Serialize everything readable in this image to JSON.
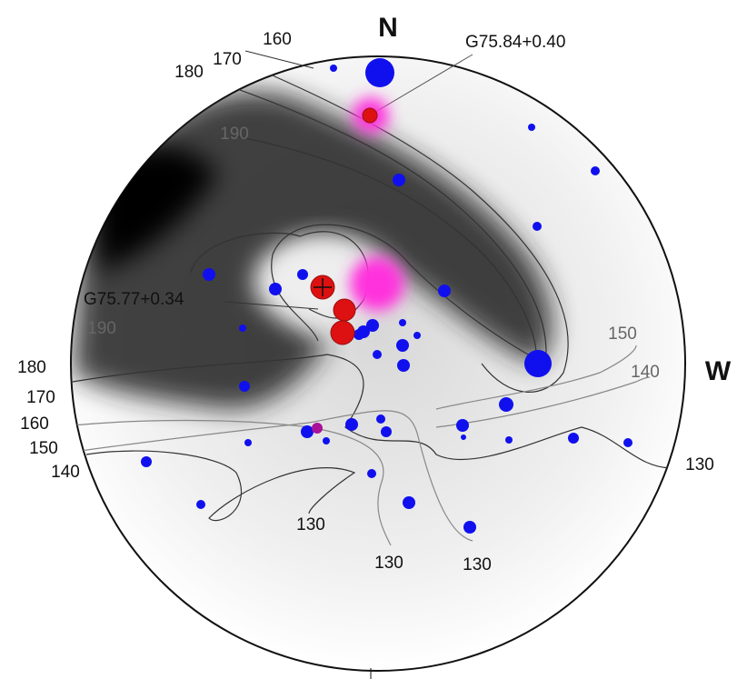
{
  "compass": {
    "north": "N",
    "west": "W"
  },
  "sources": [
    {
      "label": "G75.84+0.40"
    },
    {
      "label": "G75.77+0.34"
    }
  ],
  "contour_labels": [
    "160",
    "170",
    "180",
    "190",
    "190",
    "180",
    "170",
    "160",
    "150",
    "140",
    "150",
    "140",
    "130",
    "130",
    "130",
    "130"
  ]
}
